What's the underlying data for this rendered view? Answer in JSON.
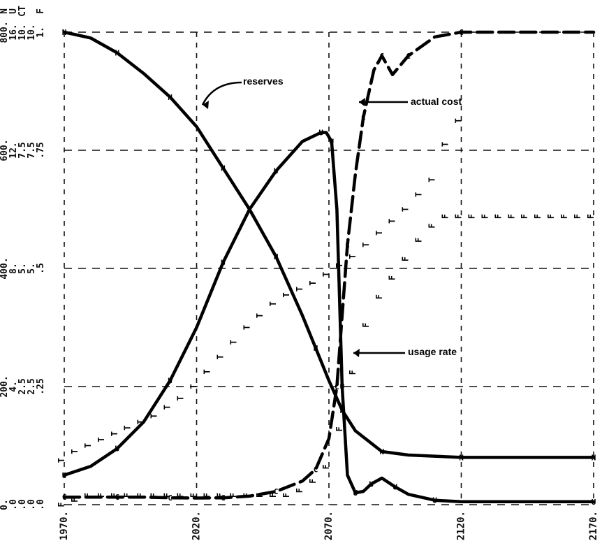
{
  "chart_data": {
    "type": "line",
    "x_tick_labels": [
      "1970.",
      "2020.",
      "2070.",
      "2120.",
      "2170."
    ],
    "x_ticks": [
      1970,
      2020,
      2070,
      2120,
      2170
    ],
    "xlim": [
      1970,
      2170
    ],
    "y_scales": [
      {
        "symbol": "N",
        "ticks": [
          "0.",
          "200.",
          "400.",
          "600.",
          "800."
        ]
      },
      {
        "symbol": "U",
        "ticks": [
          ".0",
          "4.",
          "8.",
          "12.",
          "16."
        ]
      },
      {
        "symbol": "C",
        "ticks": [
          ".0",
          "2.5",
          "5.",
          "7.5",
          "10."
        ]
      },
      {
        "symbol": "T",
        "ticks": [
          ".0",
          "2.5",
          "5.",
          "7.5",
          "10."
        ]
      },
      {
        "symbol": "F",
        "ticks": [
          ".0",
          ".25",
          ".5",
          ".75",
          "1."
        ]
      }
    ],
    "y_header_labels": {
      "row1": "N",
      "row2": "U",
      "row3": "CT",
      "row4": "F"
    },
    "annotations": [
      {
        "text": "reserves",
        "points_to": "N"
      },
      {
        "text": "actual cost",
        "points_to": "C"
      },
      {
        "text": "usage rate",
        "points_to": "U"
      }
    ],
    "series": [
      {
        "symbol": "N",
        "name": "reserves",
        "style": "solid",
        "x": [
          1970,
          1980,
          1990,
          2000,
          2010,
          2020,
          2030,
          2040,
          2050,
          2060,
          2065,
          2070,
          2075,
          2080,
          2090,
          2100,
          2120,
          2150,
          2170
        ],
        "y": [
          800,
          790,
          765,
          730,
          690,
          640,
          570,
          500,
          420,
          320,
          265,
          210,
          160,
          125,
          90,
          84,
          80,
          80,
          80
        ]
      },
      {
        "symbol": "U",
        "name": "usage rate",
        "style": "solid",
        "x": [
          1970,
          1980,
          1990,
          2000,
          2010,
          2020,
          2030,
          2040,
          2050,
          2060,
          2067,
          2069,
          2071,
          2073,
          2075,
          2077,
          2080,
          2083,
          2086,
          2090,
          2095,
          2100,
          2110,
          2120,
          2170
        ],
        "y": [
          1.0,
          1.3,
          1.9,
          2.8,
          4.2,
          6.0,
          8.2,
          10.0,
          11.3,
          12.3,
          12.6,
          12.6,
          12.3,
          10.0,
          4.0,
          1.0,
          0.4,
          0.45,
          0.7,
          0.9,
          0.6,
          0.35,
          0.15,
          0.1,
          0.1
        ]
      },
      {
        "symbol": "C",
        "name": "actual cost",
        "style": "dashed",
        "x": [
          1970,
          1980,
          1990,
          2000,
          2010,
          2020,
          2030,
          2040,
          2050,
          2060,
          2065,
          2070,
          2073,
          2075,
          2077,
          2080,
          2083,
          2087,
          2090,
          2094,
          2100,
          2110,
          2120,
          2170
        ],
        "y": [
          1.6,
          1.6,
          1.6,
          1.6,
          1.45,
          1.4,
          1.45,
          1.8,
          2.8,
          5.0,
          7.5,
          14.0,
          25.0,
          40.0,
          55.0,
          70.0,
          82.0,
          92.0,
          95.0,
          91.0,
          95.0,
          99.0,
          100.0,
          100.0
        ]
      },
      {
        "symbol": "T",
        "name": "",
        "style": "points",
        "x": [
          1970,
          1975,
          1980,
          1985,
          1990,
          1995,
          2000,
          2005,
          2010,
          2015,
          2020,
          2025,
          2030,
          2035,
          2040,
          2045,
          2050,
          2055,
          2060,
          2065,
          2070,
          2075,
          2080,
          2085,
          2090,
          2095,
          2100,
          2105,
          2110,
          2115,
          2120
        ],
        "y": [
          1.5,
          1.8,
          2.0,
          2.2,
          2.4,
          2.6,
          2.8,
          3.0,
          3.3,
          3.6,
          4.0,
          4.5,
          5.0,
          5.5,
          6.0,
          6.4,
          6.8,
          7.1,
          7.3,
          7.5,
          7.8,
          8.1,
          8.4,
          8.8,
          9.2,
          9.6,
          10.0,
          10.5,
          11.0,
          12.2,
          13.0
        ]
      },
      {
        "symbol": "F",
        "name": "",
        "style": "points",
        "x": [
          1970,
          1975,
          1980,
          1985,
          1990,
          1995,
          2000,
          2005,
          2010,
          2015,
          2020,
          2025,
          2030,
          2035,
          2040,
          2045,
          2050,
          2055,
          2060,
          2065,
          2070,
          2075,
          2080,
          2085,
          2090,
          2095,
          2100,
          2105,
          2110,
          2115,
          2120,
          2125,
          2130,
          2135,
          2140,
          2145,
          2150,
          2155,
          2160,
          2165,
          2170
        ],
        "y": [
          0.0,
          0.01,
          0.02,
          0.02,
          0.02,
          0.02,
          0.02,
          0.02,
          0.02,
          0.02,
          0.02,
          0.02,
          0.02,
          0.02,
          0.02,
          0.02,
          0.02,
          0.02,
          0.03,
          0.05,
          0.08,
          0.16,
          0.28,
          0.38,
          0.44,
          0.48,
          0.52,
          0.56,
          0.59,
          0.61,
          0.61,
          0.61,
          0.61,
          0.61,
          0.61,
          0.61,
          0.61,
          0.61,
          0.61,
          0.61,
          0.61
        ]
      }
    ],
    "grid": true,
    "legend": "none"
  }
}
